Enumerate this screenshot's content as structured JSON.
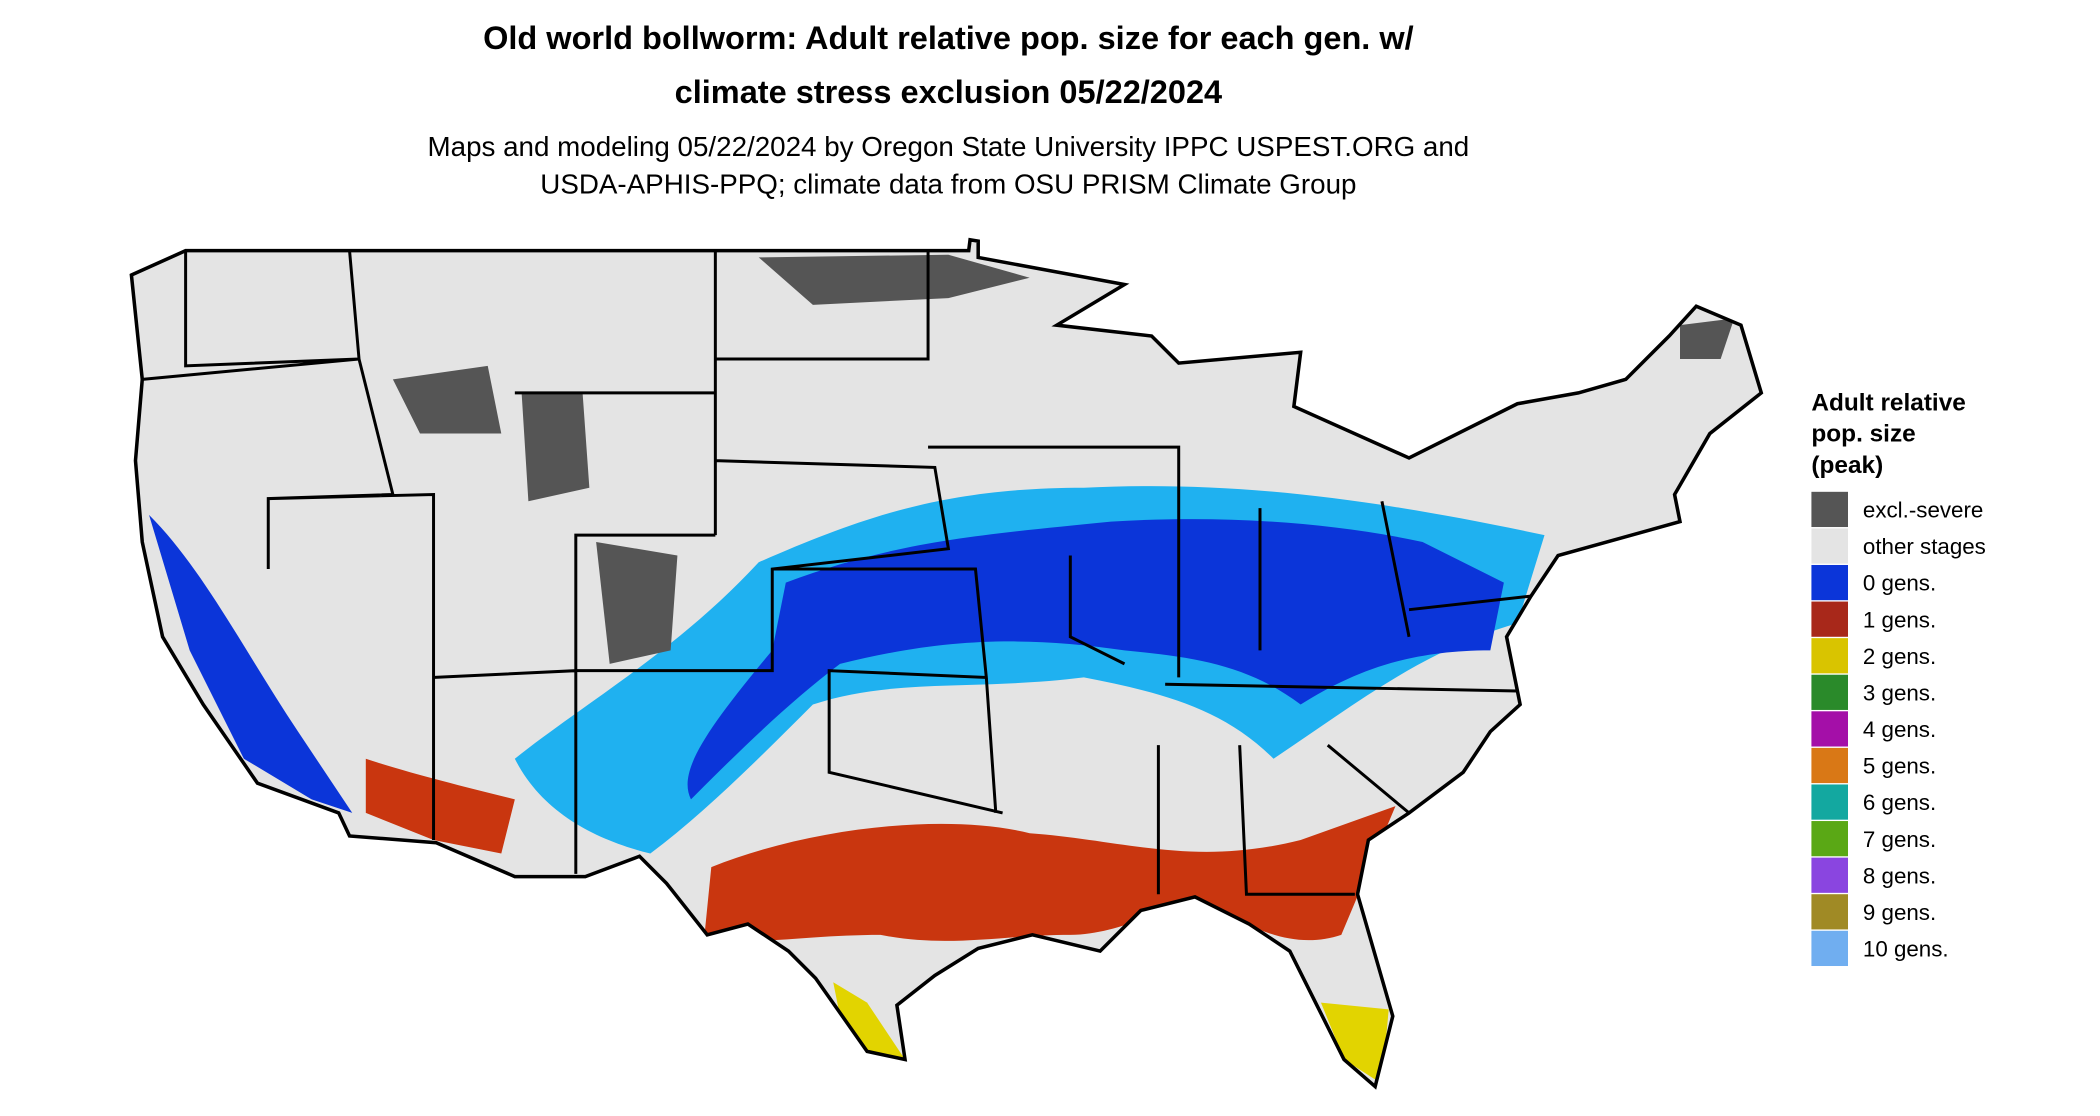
{
  "header": {
    "title_lines": [
      "Old world bollworm: Adult relative pop. size for each gen. w/",
      "climate stress exclusion 05/22/2024"
    ],
    "subtitle_lines": [
      "Maps and modeling 05/22/2024 by Oregon State University IPPC USPEST.ORG and",
      "USDA-APHIS-PPQ; climate data from OSU PRISM Climate Group"
    ]
  },
  "legend": {
    "title_lines": [
      "Adult relative",
      "pop. size",
      "(peak)"
    ],
    "items": [
      {
        "label": "excl.-severe",
        "color": "#555555"
      },
      {
        "label": "other stages",
        "color": "#e4e4e4"
      },
      {
        "label": "0 gens.",
        "color": "#0b35d9"
      },
      {
        "label": "1 gens.",
        "color": "#a8281a"
      },
      {
        "label": "2 gens.",
        "color": "#d9c400"
      },
      {
        "label": "3 gens.",
        "color": "#2a8a2a"
      },
      {
        "label": "4 gens.",
        "color": "#a40fa8"
      },
      {
        "label": "5 gens.",
        "color": "#d97816"
      },
      {
        "label": "6 gens.",
        "color": "#13a8a0"
      },
      {
        "label": "7 gens.",
        "color": "#5aa815"
      },
      {
        "label": "8 gens.",
        "color": "#8a45e0"
      },
      {
        "label": "9 gens.",
        "color": "#a08a25"
      },
      {
        "label": "10 gens.",
        "color": "#70aef0"
      }
    ]
  }
}
